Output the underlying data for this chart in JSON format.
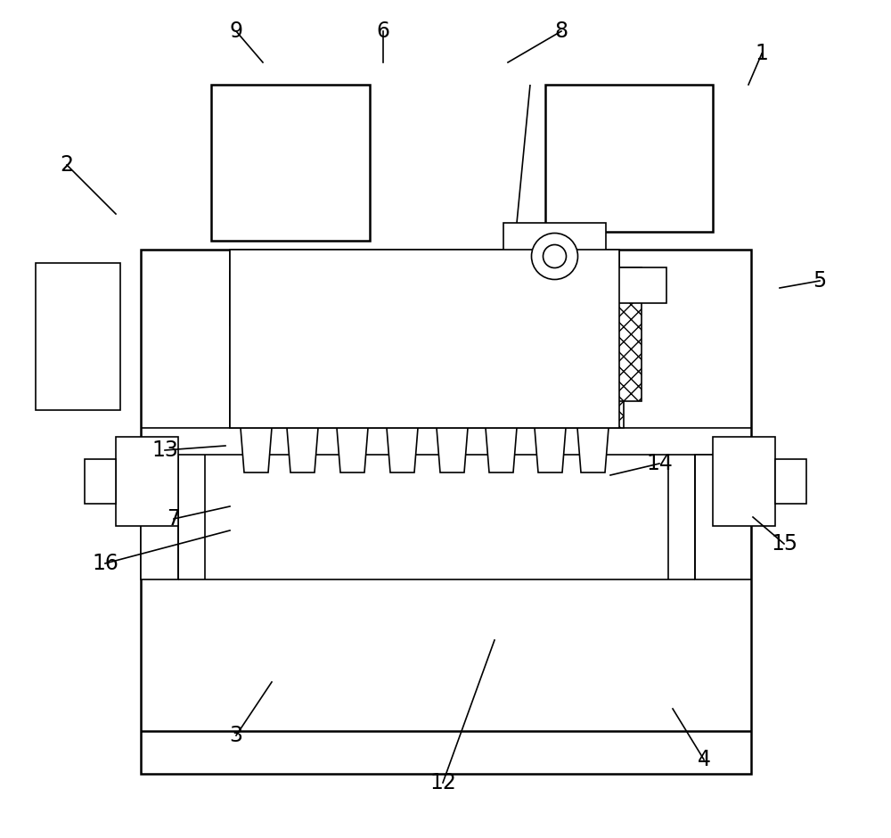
{
  "bg_color": "#ffffff",
  "line_color": "#000000",
  "lw_main": 1.8,
  "lw_thin": 1.2,
  "label_fontsize": 17,
  "labels_data": [
    [
      "1",
      855,
      880,
      855,
      880,
      840,
      845
    ],
    [
      "2",
      75,
      755,
      75,
      755,
      130,
      700
    ],
    [
      "3",
      265,
      115,
      265,
      115,
      305,
      175
    ],
    [
      "4",
      790,
      88,
      790,
      88,
      755,
      145
    ],
    [
      "5",
      920,
      625,
      920,
      625,
      875,
      617
    ],
    [
      "6",
      430,
      905,
      430,
      905,
      430,
      870
    ],
    [
      "7",
      195,
      358,
      195,
      358,
      258,
      372
    ],
    [
      "8",
      630,
      905,
      630,
      905,
      570,
      870
    ],
    [
      "9",
      265,
      905,
      265,
      905,
      295,
      870
    ],
    [
      "12",
      497,
      62,
      497,
      62,
      555,
      222
    ],
    [
      "13",
      185,
      435,
      185,
      435,
      253,
      440
    ],
    [
      "14",
      740,
      420,
      740,
      420,
      685,
      407
    ],
    [
      "15",
      880,
      330,
      880,
      330,
      845,
      360
    ],
    [
      "16",
      118,
      308,
      118,
      308,
      258,
      345
    ]
  ]
}
